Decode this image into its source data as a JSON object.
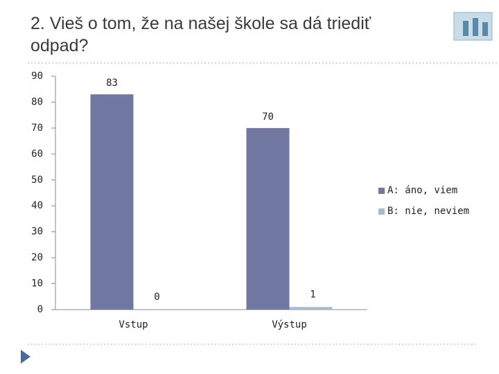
{
  "chart_data": {
    "type": "bar",
    "title": "2. Vieš o tom, že na našej škole sa dá triediť odpad?",
    "categories": [
      "Vstup",
      "Výstup"
    ],
    "series": [
      {
        "name": "A: áno, viem",
        "color": "#7078a2",
        "values": [
          83,
          70
        ]
      },
      {
        "name": "B: nie, neviem",
        "color": "#a8bccb",
        "values": [
          0,
          1
        ]
      }
    ],
    "ylim": [
      0,
      90
    ],
    "yticks": [
      0,
      10,
      20,
      30,
      40,
      50,
      60,
      70,
      80,
      90
    ],
    "legend": "right",
    "data_labels": true,
    "grid": false
  }
}
